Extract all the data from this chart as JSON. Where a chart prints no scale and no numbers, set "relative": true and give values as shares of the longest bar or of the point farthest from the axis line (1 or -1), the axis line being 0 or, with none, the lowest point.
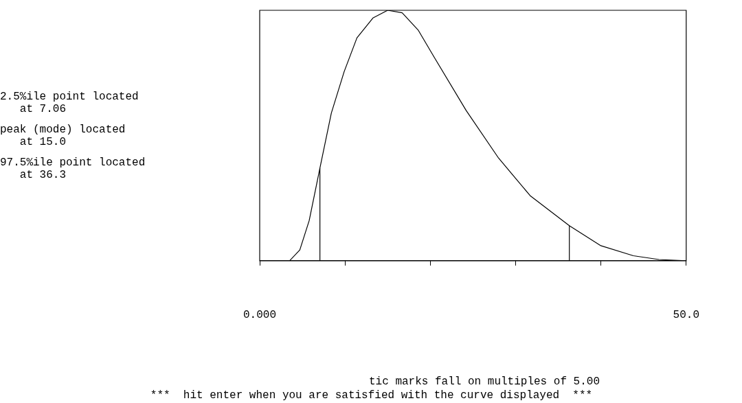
{
  "chart_data": {
    "type": "line",
    "relative": true,
    "x": [
      3.5,
      4.7,
      5.8,
      7.0,
      8.4,
      9.9,
      11.4,
      13.3,
      15.0,
      16.7,
      18.6,
      20.5,
      24.2,
      28.0,
      31.7,
      36.3,
      40.0,
      43.8,
      46.8,
      50.0
    ],
    "series": [
      {
        "color": "#000000",
        "values": [
          0,
          0.043,
          0.16,
          0.36,
          0.59,
          0.755,
          0.89,
          0.97,
          1.0,
          0.99,
          0.92,
          0.81,
          0.6,
          0.41,
          0.26,
          0.14,
          0.06,
          0.02,
          0.005,
          0
        ]
      }
    ],
    "xlim": [
      0,
      50
    ],
    "xticks": [
      {
        "value": 0,
        "label": "0.000"
      },
      {
        "value": 10,
        "label": null
      },
      {
        "value": 20,
        "label": null
      },
      {
        "value": 30,
        "label": null
      },
      {
        "value": 40,
        "label": null
      },
      {
        "value": 50,
        "label": "50.0"
      }
    ],
    "ref_lines": [
      {
        "axis": "x",
        "value": 7.06,
        "color": "#000000"
      },
      {
        "axis": "x",
        "value": 36.3,
        "color": "#000000"
      }
    ],
    "xlabel": "tic marks fall on multiples of 5.00",
    "annotations": [
      "2.5%ile point located\n   at 7.06",
      "peak (mode) located\n   at 15.0",
      "97.5%ile point located\n   at 36.3",
      "***  hit enter when you are satisfied with the curve displayed  ***"
    ],
    "grid": false,
    "legend": false,
    "marker": "none",
    "line_style": "solid"
  }
}
